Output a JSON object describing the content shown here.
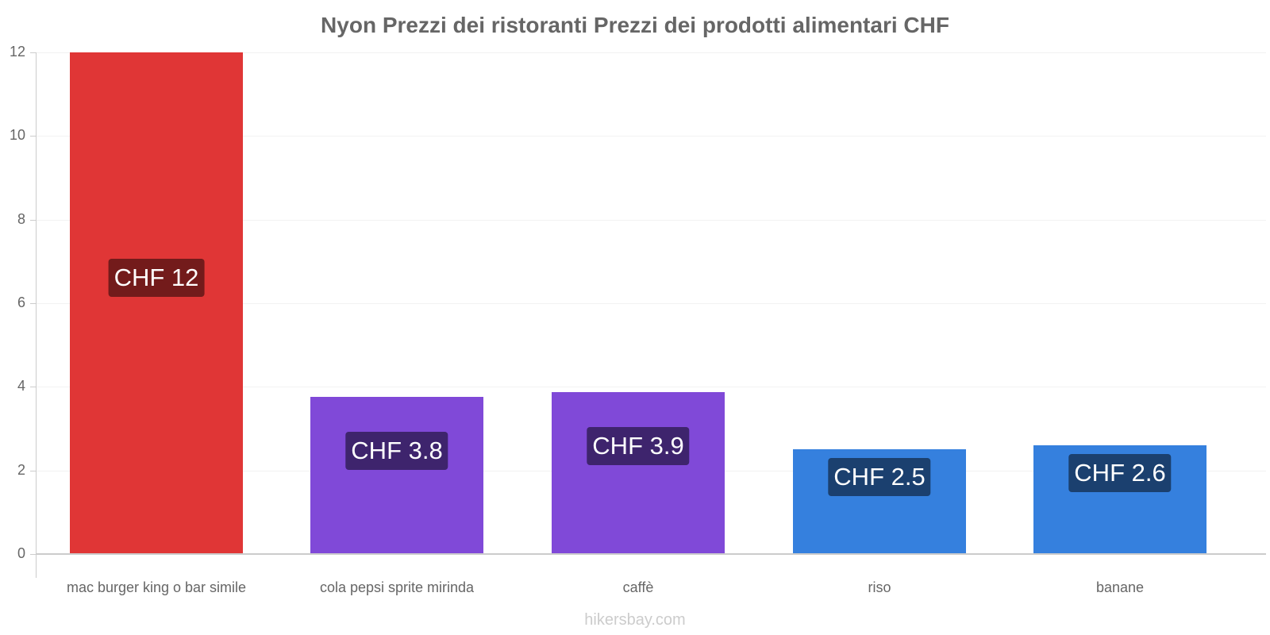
{
  "title": "Nyon Prezzi dei ristoranti Prezzi dei prodotti alimentari CHF",
  "footer": "hikersbay.com",
  "y_ticks": [
    "0",
    "2",
    "4",
    "6",
    "8",
    "10",
    "12"
  ],
  "bars": [
    {
      "category": "mac burger king o bar simile",
      "value": 12,
      "label": "CHF 12",
      "color": "#e03636",
      "label_bg": "#731b1b"
    },
    {
      "category": "cola pepsi sprite mirinda",
      "value": 3.76,
      "label": "CHF 3.8",
      "color": "#8049d8",
      "label_bg": "#3e246d"
    },
    {
      "category": "caffè",
      "value": 3.87,
      "label": "CHF 3.9",
      "color": "#8049d8",
      "label_bg": "#3e246d"
    },
    {
      "category": "riso",
      "value": 2.5,
      "label": "CHF 2.5",
      "color": "#3580de",
      "label_bg": "#1b406f"
    },
    {
      "category": "banane",
      "value": 2.6,
      "label": "CHF 2.6",
      "color": "#3580de",
      "label_bg": "#1b406f"
    }
  ],
  "chart_data": {
    "type": "bar",
    "title": "Nyon Prezzi dei ristoranti Prezzi dei prodotti alimentari CHF",
    "categories": [
      "mac burger king o bar simile",
      "cola pepsi sprite mirinda",
      "caffè",
      "riso",
      "banane"
    ],
    "values": [
      12,
      3.8,
      3.9,
      2.5,
      2.6
    ],
    "data_labels": [
      "CHF 12",
      "CHF 3.8",
      "CHF 3.9",
      "CHF 2.5",
      "CHF 2.6"
    ],
    "xlabel": "",
    "ylabel": "",
    "ylim": [
      0,
      12
    ],
    "yticks": [
      0,
      2,
      4,
      6,
      8,
      10,
      12
    ],
    "grid": true,
    "legend": "none",
    "colors": [
      "#e03636",
      "#8049d8",
      "#8049d8",
      "#3580de",
      "#3580de"
    ]
  }
}
